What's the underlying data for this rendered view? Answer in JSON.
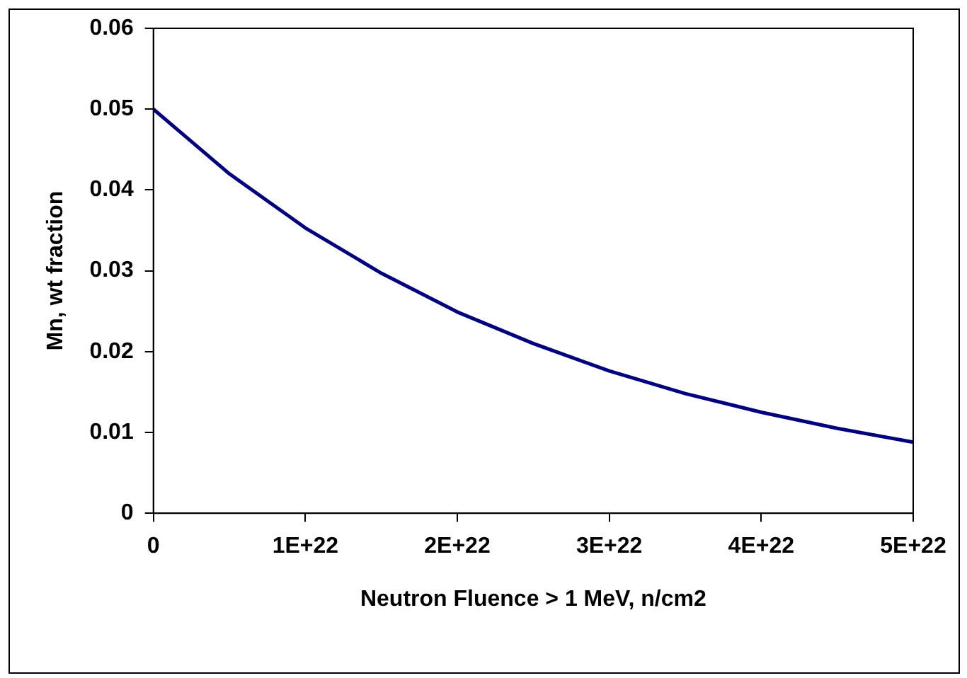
{
  "chart_data": {
    "type": "line",
    "xlabel": "Neutron Fluence > 1 MeV, n/cm2",
    "ylabel": "Mn, wt fraction",
    "x": [
      0,
      5e+21,
      1e+22,
      1.5e+22,
      2e+22,
      2.5e+22,
      3e+22,
      3.5e+22,
      4e+22,
      4.5e+22,
      5e+22
    ],
    "series": [
      {
        "color": "#000080",
        "values": [
          0.05,
          0.042,
          0.0353,
          0.0297,
          0.0249,
          0.021,
          0.0176,
          0.0148,
          0.0125,
          0.0105,
          0.0088
        ]
      }
    ],
    "xlim": [
      0,
      5e+22
    ],
    "xticks": [
      0,
      {
        "value": 1e+22,
        "label": "1E+22"
      },
      {
        "value": 2e+22,
        "label": "2E+22"
      },
      {
        "value": 3e+22,
        "label": "3E+22"
      },
      {
        "value": 4e+22,
        "label": "4E+22"
      },
      {
        "value": 5e+22,
        "label": "5E+22"
      }
    ],
    "ylim": [
      0,
      0.06
    ],
    "yticks": [
      0,
      0.01,
      0.02,
      0.03,
      0.04,
      0.05,
      0.06
    ],
    "grid": false,
    "legend": false,
    "marker": "none",
    "line_style": "solid"
  }
}
